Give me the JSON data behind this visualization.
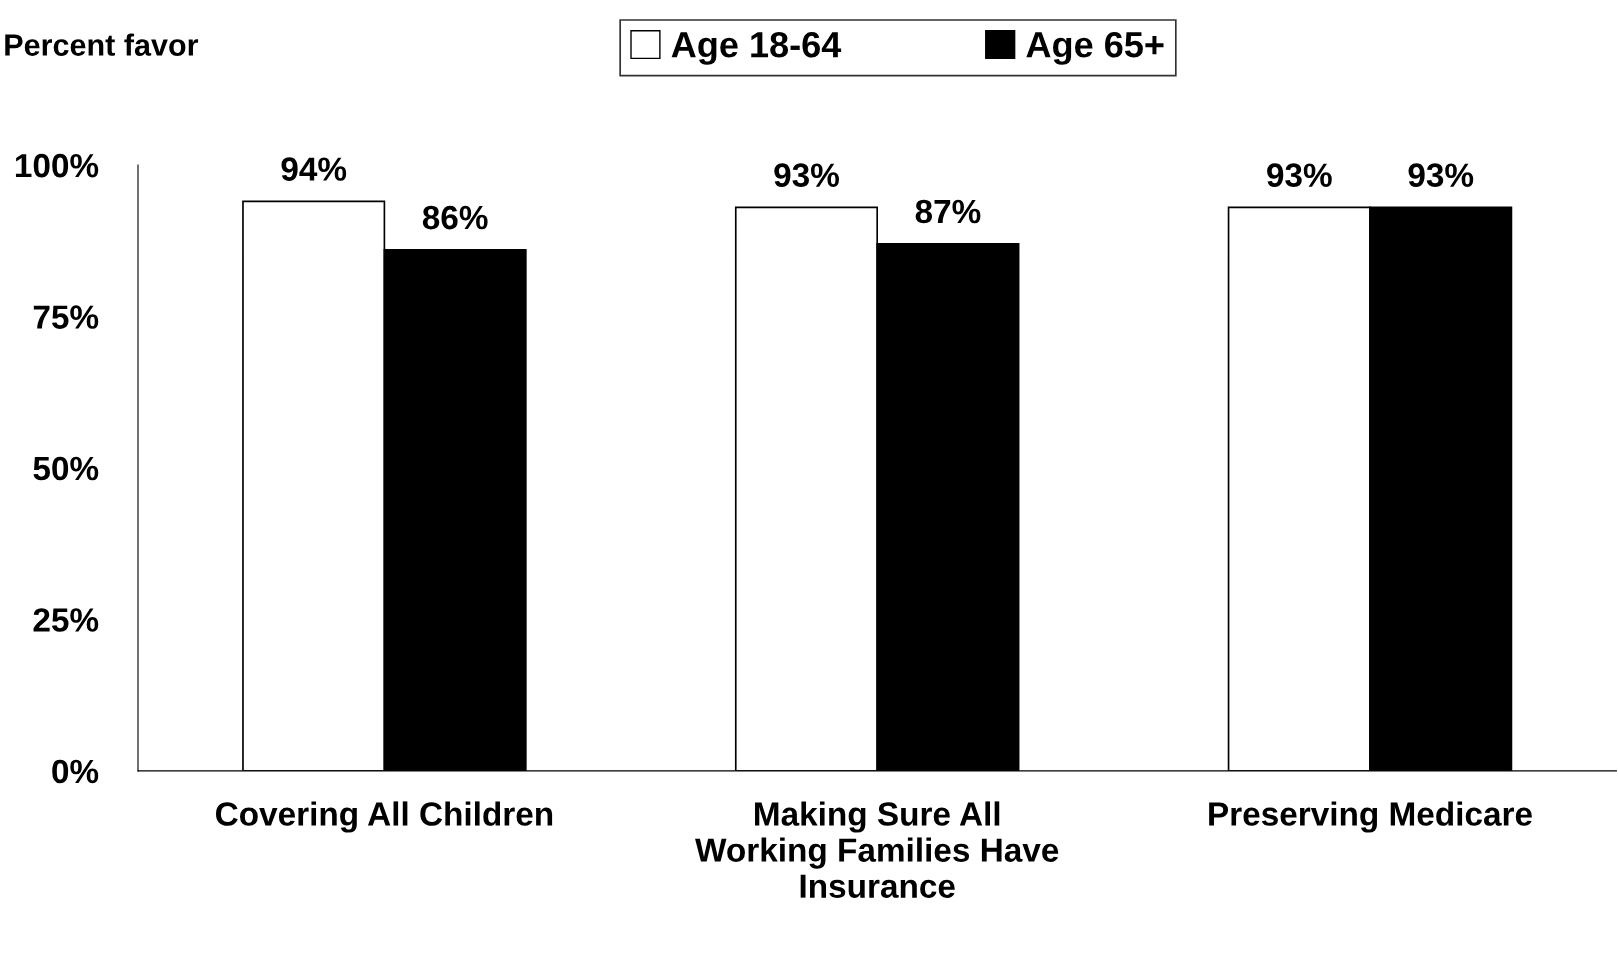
{
  "chart_data": {
    "type": "bar",
    "ylabel": "Percent favor",
    "categories": [
      "Covering All Children",
      "Making Sure All\nWorking Families Have\nInsurance",
      "Preserving Medicare"
    ],
    "series": [
      {
        "name": "Age 18-64",
        "color": "#ffffff",
        "values": [
          94,
          93,
          93
        ],
        "value_labels": [
          "94%",
          "93%",
          "93%"
        ]
      },
      {
        "name": "Age 65+",
        "color": "#000000",
        "values": [
          86,
          87,
          93
        ],
        "value_labels": [
          "86%",
          "87%",
          "93%"
        ]
      }
    ],
    "ylim": [
      0,
      100
    ],
    "yticks": [
      {
        "value": 0,
        "label": "0%"
      },
      {
        "value": 25,
        "label": "25%"
      },
      {
        "value": 50,
        "label": "50%"
      },
      {
        "value": 75,
        "label": "75%"
      },
      {
        "value": 100,
        "label": "100%"
      }
    ],
    "grid": false,
    "legend": "top"
  }
}
